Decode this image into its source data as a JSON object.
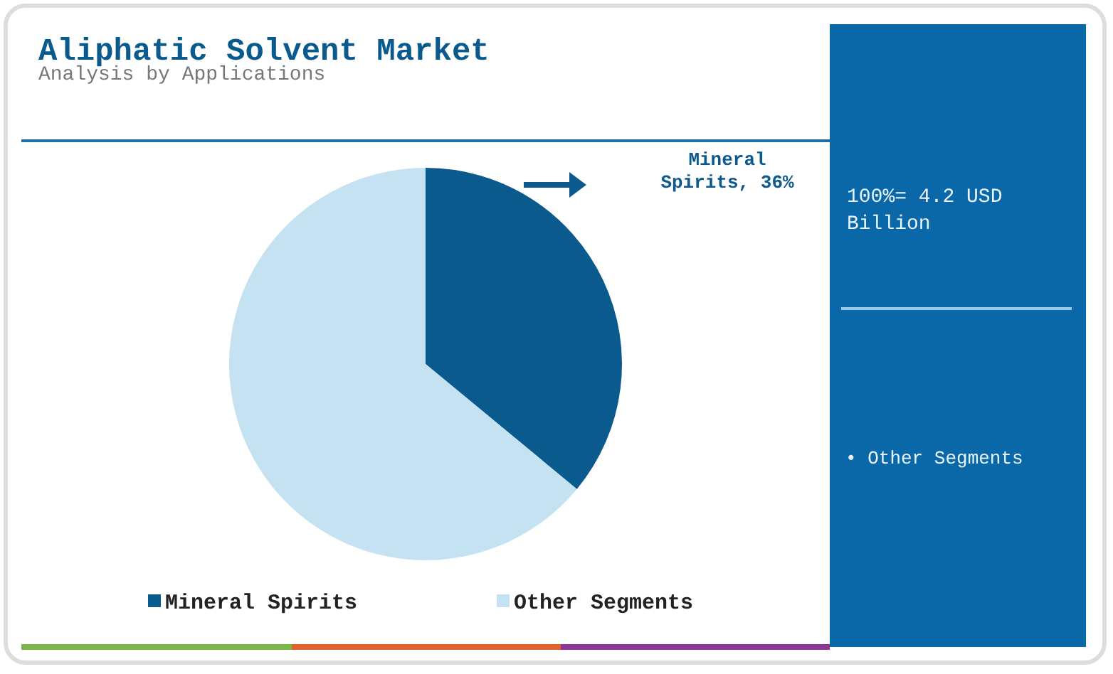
{
  "chart_data": {
    "type": "pie",
    "title": "Aliphatic Solvent Market",
    "subtitle": "Analysis by Applications",
    "categories": [
      "Mineral Spirits",
      "Other Segments"
    ],
    "values": [
      36,
      64
    ],
    "colors": [
      "#0b5a8e",
      "#c5e2f3"
    ],
    "legend": "bottom",
    "annotations": [
      {
        "text": "Mineral Spirits, 36%",
        "x": "Mineral Spirits"
      },
      "100%= 4.2 USD Billion",
      "• Other Segments"
    ]
  }
}
